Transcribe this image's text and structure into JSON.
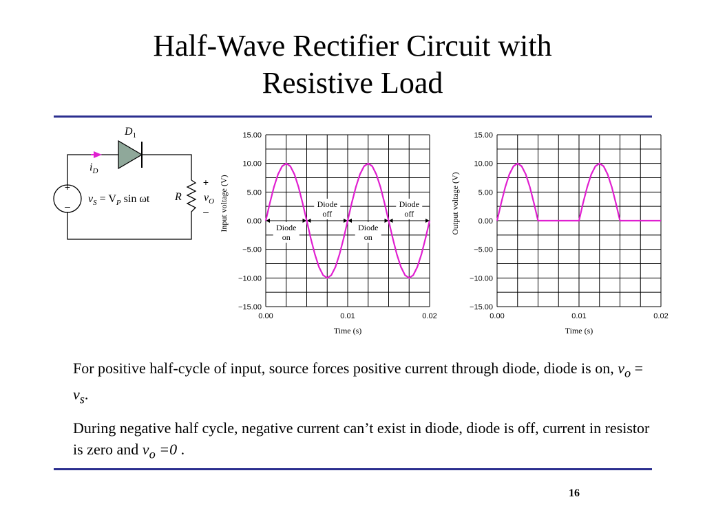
{
  "slide": {
    "title_line1": "Half-Wave Rectifier Circuit with",
    "title_line2": "Resistive Load",
    "page_number": "16",
    "accent_color": "#2b2f8f"
  },
  "circuit": {
    "diode_label": "D",
    "diode_sub": "1",
    "current_label": "i",
    "current_sub": "D",
    "source_expr": "v",
    "source_sub": "S",
    "source_eq": " = V",
    "source_eq_sub": "P",
    "source_fn": " sin ωt",
    "resistor_label": "R",
    "output_label": "v",
    "output_sub": "O",
    "plus": "+",
    "minus": "–"
  },
  "text": {
    "p1_a": "For positive half-cycle of input, source forces positive current through diode, diode is on, ",
    "p1_v1": "v",
    "p1_s1": "o",
    "p1_eq": " = ",
    "p1_v2": "v",
    "p1_s2": "s",
    "p1_end": ".",
    "p2_a": "During negative half cycle, negative current can’t exist in diode, diode is off, current in resistor is zero and ",
    "p2_v": "v",
    "p2_s": "o",
    "p2_eq": " =0",
    "p2_end": " ."
  },
  "chart_data": [
    {
      "type": "line",
      "id": "input",
      "xlabel": "Time (s)",
      "ylabel": "Input voltage (V)",
      "xlim": [
        0,
        0.02
      ],
      "ylim": [
        -15,
        15
      ],
      "x_tick_labels": [
        "0.00",
        "0.01",
        "0.02"
      ],
      "y_tick_labels": [
        "15.00",
        "10.00",
        "5.00",
        "0.00",
        "−5.00",
        "−10.00",
        "−15.00"
      ],
      "grid": true,
      "line_color": "#e01fd0",
      "series": [
        {
          "x": [
            0,
            0.0005,
            0.001,
            0.0015,
            0.002,
            0.0025,
            0.003,
            0.0035,
            0.004,
            0.0045,
            0.005,
            0.0055,
            0.006,
            0.0065,
            0.007,
            0.0075,
            0.008,
            0.0085,
            0.009,
            0.0095,
            0.01,
            0.0105,
            0.011,
            0.0115,
            0.012,
            0.0125,
            0.013,
            0.0135,
            0.014,
            0.0145,
            0.015,
            0.0155,
            0.016,
            0.0165,
            0.017,
            0.0175,
            0.018,
            0.0185,
            0.019,
            0.0195,
            0.02
          ],
          "y": [
            0,
            3.09,
            5.88,
            8.09,
            9.51,
            10,
            9.51,
            8.09,
            5.88,
            3.09,
            0,
            -3.09,
            -5.88,
            -8.09,
            -9.51,
            -10,
            -9.51,
            -8.09,
            -5.88,
            -3.09,
            0,
            3.09,
            5.88,
            8.09,
            9.51,
            10,
            9.51,
            8.09,
            5.88,
            3.09,
            0,
            -3.09,
            -5.88,
            -8.09,
            -9.51,
            -10,
            -9.51,
            -8.09,
            -5.88,
            -3.09,
            0
          ]
        }
      ],
      "annotations": [
        {
          "line1": "Diode",
          "line2": "off",
          "x_from": 0.005,
          "x_to": 0.01,
          "y": 0
        },
        {
          "line1": "Diode",
          "line2": "off",
          "x_from": 0.015,
          "x_to": 0.02,
          "y": 0
        },
        {
          "line1": "Diode",
          "line2": "on",
          "x_from": 0,
          "x_to": 0.005,
          "y": 0
        },
        {
          "line1": "Diode",
          "line2": "on",
          "x_from": 0.01,
          "x_to": 0.015,
          "y": 0
        }
      ]
    },
    {
      "type": "line",
      "id": "output",
      "xlabel": "Time (s)",
      "ylabel": "Output voltage (V)",
      "xlim": [
        0,
        0.02
      ],
      "ylim": [
        -15,
        15
      ],
      "x_tick_labels": [
        "0.00",
        "0.01",
        "0.02"
      ],
      "y_tick_labels": [
        "15.00",
        "10.00",
        "5.00",
        "0.00",
        "−5.00",
        "−10.00",
        "−15.00"
      ],
      "grid": true,
      "line_color": "#e01fd0",
      "series": [
        {
          "x": [
            0,
            0.0005,
            0.001,
            0.0015,
            0.002,
            0.0025,
            0.003,
            0.0035,
            0.004,
            0.0045,
            0.005,
            0.0055,
            0.006,
            0.0065,
            0.007,
            0.0075,
            0.008,
            0.0085,
            0.009,
            0.0095,
            0.01,
            0.0105,
            0.011,
            0.0115,
            0.012,
            0.0125,
            0.013,
            0.0135,
            0.014,
            0.0145,
            0.015,
            0.0155,
            0.016,
            0.0165,
            0.017,
            0.0175,
            0.018,
            0.0185,
            0.019,
            0.0195,
            0.02
          ],
          "y": [
            0,
            3.09,
            5.88,
            8.09,
            9.51,
            10,
            9.51,
            8.09,
            5.88,
            3.09,
            0,
            0,
            0,
            0,
            0,
            0,
            0,
            0,
            0,
            0,
            0,
            3.09,
            5.88,
            8.09,
            9.51,
            10,
            9.51,
            8.09,
            5.88,
            3.09,
            0,
            0,
            0,
            0,
            0,
            0,
            0,
            0,
            0,
            0,
            0
          ]
        }
      ],
      "annotations": []
    }
  ]
}
